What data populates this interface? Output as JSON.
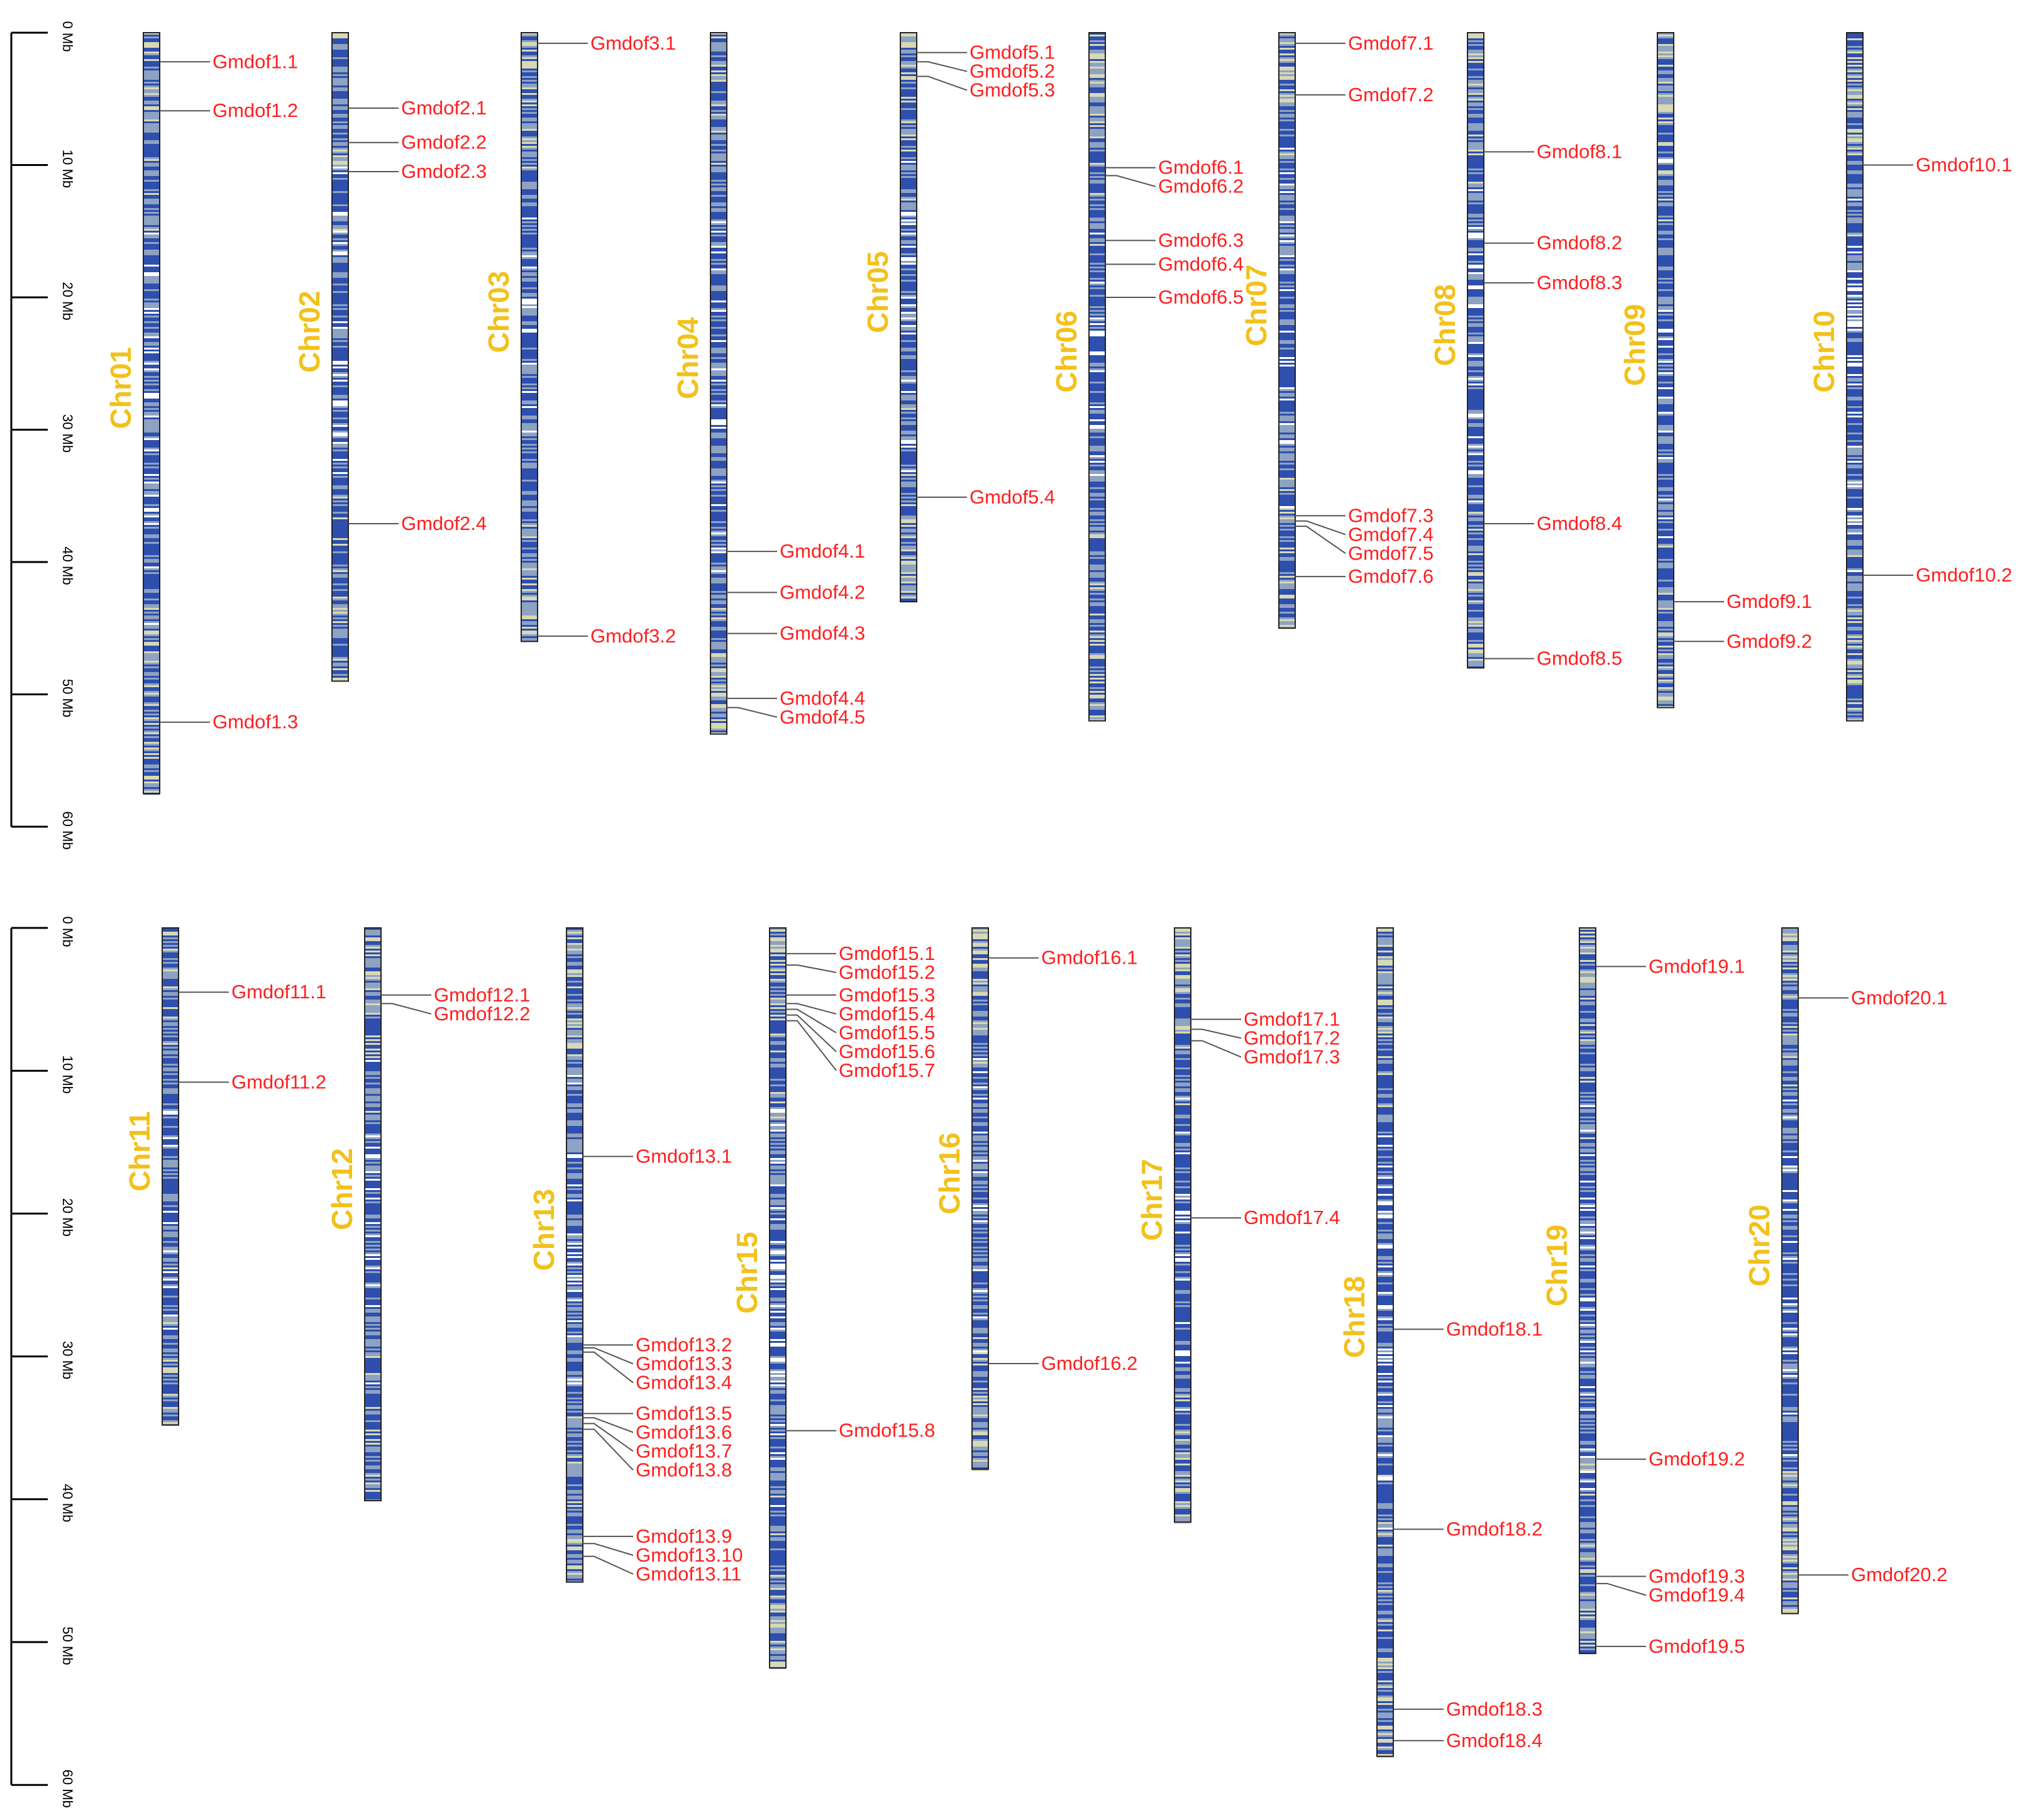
{
  "scale": {
    "unit": "Mb",
    "ticks": [
      0,
      10,
      20,
      30,
      40,
      50,
      60
    ],
    "tick_labels": [
      "0 Mb",
      "10 Mb",
      "20 Mb",
      "30 Mb",
      "40 Mb",
      "50 Mb",
      "60 Mb"
    ]
  },
  "colors": {
    "gene_label": "#ff2020",
    "chromosome_name": "#f2c11a",
    "density_low": "#d8d8b4",
    "density_mid": "#8ea2c2",
    "density_high": "#2e4fae"
  },
  "panels": [
    {
      "chromosomes": [
        {
          "name": "Chr01",
          "length": 57.5,
          "genes": [
            {
              "id": "Gmdof1.1",
              "pos": 2.2
            },
            {
              "id": "Gmdof1.2",
              "pos": 5.9
            },
            {
              "id": "Gmdof1.3",
              "pos": 52.1
            }
          ]
        },
        {
          "name": "Chr02",
          "length": 49.0,
          "genes": [
            {
              "id": "Gmdof2.1",
              "pos": 5.7
            },
            {
              "id": "Gmdof2.2",
              "pos": 8.3
            },
            {
              "id": "Gmdof2.3",
              "pos": 10.5
            },
            {
              "id": "Gmdof2.4",
              "pos": 37.1
            }
          ]
        },
        {
          "name": "Chr03",
          "length": 46.0,
          "genes": [
            {
              "id": "Gmdof3.1",
              "pos": 0.8
            },
            {
              "id": "Gmdof3.2",
              "pos": 45.6
            }
          ]
        },
        {
          "name": "Chr04",
          "length": 53.0,
          "genes": [
            {
              "id": "Gmdof4.1",
              "pos": 39.2
            },
            {
              "id": "Gmdof4.2",
              "pos": 42.3
            },
            {
              "id": "Gmdof4.3",
              "pos": 45.4
            },
            {
              "id": "Gmdof4.4",
              "pos": 50.3
            },
            {
              "id": "Gmdof4.5",
              "pos": 51.0
            }
          ]
        },
        {
          "name": "Chr05",
          "length": 43.0,
          "genes": [
            {
              "id": "Gmdof5.1",
              "pos": 1.5
            },
            {
              "id": "Gmdof5.2",
              "pos": 2.2
            },
            {
              "id": "Gmdof5.3",
              "pos": 3.3
            },
            {
              "id": "Gmdof5.4",
              "pos": 35.1
            }
          ]
        },
        {
          "name": "Chr06",
          "length": 52.0,
          "genes": [
            {
              "id": "Gmdof6.1",
              "pos": 10.2
            },
            {
              "id": "Gmdof6.2",
              "pos": 10.8
            },
            {
              "id": "Gmdof6.3",
              "pos": 15.7
            },
            {
              "id": "Gmdof6.4",
              "pos": 17.5
            },
            {
              "id": "Gmdof6.5",
              "pos": 20.0
            }
          ]
        },
        {
          "name": "Chr07",
          "length": 45.0,
          "genes": [
            {
              "id": "Gmdof7.1",
              "pos": 0.8
            },
            {
              "id": "Gmdof7.2",
              "pos": 4.7
            },
            {
              "id": "Gmdof7.3",
              "pos": 36.5
            },
            {
              "id": "Gmdof7.4",
              "pos": 36.9
            },
            {
              "id": "Gmdof7.5",
              "pos": 37.3
            },
            {
              "id": "Gmdof7.6",
              "pos": 41.1
            }
          ]
        },
        {
          "name": "Chr08",
          "length": 48.0,
          "genes": [
            {
              "id": "Gmdof8.1",
              "pos": 9.0
            },
            {
              "id": "Gmdof8.2",
              "pos": 15.9
            },
            {
              "id": "Gmdof8.3",
              "pos": 18.9
            },
            {
              "id": "Gmdof8.4",
              "pos": 37.1
            },
            {
              "id": "Gmdof8.5",
              "pos": 47.3
            }
          ]
        },
        {
          "name": "Chr09",
          "length": 51.0,
          "genes": [
            {
              "id": "Gmdof9.1",
              "pos": 43.0
            },
            {
              "id": "Gmdof9.2",
              "pos": 46.0
            }
          ]
        },
        {
          "name": "Chr10",
          "length": 52.0,
          "genes": [
            {
              "id": "Gmdof10.1",
              "pos": 10.0
            },
            {
              "id": "Gmdof10.2",
              "pos": 41.0
            }
          ]
        }
      ]
    },
    {
      "chromosomes": [
        {
          "name": "Chr11",
          "length": 34.8,
          "genes": [
            {
              "id": "Gmdof11.1",
              "pos": 4.5
            },
            {
              "id": "Gmdof11.2",
              "pos": 10.8
            }
          ]
        },
        {
          "name": "Chr12",
          "length": 40.1,
          "genes": [
            {
              "id": "Gmdof12.1",
              "pos": 4.7
            },
            {
              "id": "Gmdof12.2",
              "pos": 5.3
            }
          ]
        },
        {
          "name": "Chr13",
          "length": 45.8,
          "genes": [
            {
              "id": "Gmdof13.1",
              "pos": 16.0
            },
            {
              "id": "Gmdof13.2",
              "pos": 29.2
            },
            {
              "id": "Gmdof13.3",
              "pos": 29.4
            },
            {
              "id": "Gmdof13.4",
              "pos": 29.7
            },
            {
              "id": "Gmdof13.5",
              "pos": 34.0
            },
            {
              "id": "Gmdof13.6",
              "pos": 34.3
            },
            {
              "id": "Gmdof13.7",
              "pos": 34.7
            },
            {
              "id": "Gmdof13.8",
              "pos": 35.1
            },
            {
              "id": "Gmdof13.9",
              "pos": 42.6
            },
            {
              "id": "Gmdof13.10",
              "pos": 43.1
            },
            {
              "id": "Gmdof13.11",
              "pos": 44.0
            }
          ]
        },
        {
          "name": "Chr15",
          "length": 51.8,
          "genes": [
            {
              "id": "Gmdof15.1",
              "pos": 1.8
            },
            {
              "id": "Gmdof15.2",
              "pos": 2.6
            },
            {
              "id": "Gmdof15.3",
              "pos": 4.7
            },
            {
              "id": "Gmdof15.4",
              "pos": 5.3
            },
            {
              "id": "Gmdof15.5",
              "pos": 5.7
            },
            {
              "id": "Gmdof15.6",
              "pos": 6.1
            },
            {
              "id": "Gmdof15.7",
              "pos": 6.5
            },
            {
              "id": "Gmdof15.8",
              "pos": 35.2
            }
          ]
        },
        {
          "name": "Chr16",
          "length": 37.9,
          "genes": [
            {
              "id": "Gmdof16.1",
              "pos": 2.1
            },
            {
              "id": "Gmdof16.2",
              "pos": 30.5
            }
          ]
        },
        {
          "name": "Chr17",
          "length": 41.6,
          "genes": [
            {
              "id": "Gmdof17.1",
              "pos": 6.4
            },
            {
              "id": "Gmdof17.2",
              "pos": 7.1
            },
            {
              "id": "Gmdof17.3",
              "pos": 7.9
            },
            {
              "id": "Gmdof17.4",
              "pos": 20.3
            }
          ]
        },
        {
          "name": "Chr18",
          "length": 58.0,
          "genes": [
            {
              "id": "Gmdof18.1",
              "pos": 28.1
            },
            {
              "id": "Gmdof18.2",
              "pos": 42.1
            },
            {
              "id": "Gmdof18.3",
              "pos": 54.7
            },
            {
              "id": "Gmdof18.4",
              "pos": 56.9
            }
          ]
        },
        {
          "name": "Chr19",
          "length": 50.8,
          "genes": [
            {
              "id": "Gmdof19.1",
              "pos": 2.7
            },
            {
              "id": "Gmdof19.2",
              "pos": 37.2
            },
            {
              "id": "Gmdof19.3",
              "pos": 45.4
            },
            {
              "id": "Gmdof19.4",
              "pos": 45.9
            },
            {
              "id": "Gmdof19.5",
              "pos": 50.3
            }
          ]
        },
        {
          "name": "Chr20",
          "length": 48.0,
          "genes": [
            {
              "id": "Gmdof20.1",
              "pos": 4.9
            },
            {
              "id": "Gmdof20.2",
              "pos": 45.3
            }
          ]
        }
      ]
    }
  ]
}
